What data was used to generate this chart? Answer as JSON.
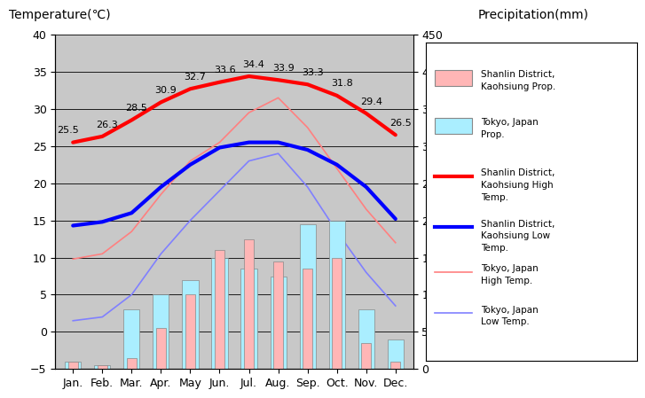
{
  "months": [
    "Jan.",
    "Feb.",
    "Mar.",
    "Apr.",
    "May",
    "Jun.",
    "Jul.",
    "Aug.",
    "Sep.",
    "Oct.",
    "Nov.",
    "Dec."
  ],
  "shanlin_high": [
    25.5,
    26.3,
    28.5,
    30.9,
    32.7,
    33.6,
    34.4,
    33.9,
    33.3,
    31.8,
    29.4,
    26.5
  ],
  "shanlin_low": [
    14.3,
    14.8,
    16.0,
    19.5,
    22.5,
    24.8,
    25.5,
    25.5,
    24.5,
    22.5,
    19.5,
    15.2
  ],
  "tokyo_high": [
    9.8,
    10.5,
    13.5,
    18.5,
    23.0,
    25.5,
    29.5,
    31.5,
    27.5,
    22.0,
    16.5,
    12.0
  ],
  "tokyo_low": [
    1.5,
    2.0,
    5.0,
    10.5,
    15.0,
    19.0,
    23.0,
    24.0,
    19.5,
    13.5,
    8.0,
    3.5
  ],
  "shanlin_precip": [
    10,
    5,
    15,
    55,
    100,
    160,
    175,
    145,
    135,
    150,
    35,
    10
  ],
  "tokyo_precip_mm": [
    10,
    5,
    80,
    100,
    120,
    150,
    135,
    125,
    195,
    200,
    80,
    40
  ],
  "shanlin_precip_color": "#FFB6B6",
  "tokyo_precip_color": "#AAEEFF",
  "shanlin_high_color": "#FF0000",
  "shanlin_low_color": "#0000FF",
  "tokyo_high_color": "#FF8080",
  "tokyo_low_color": "#8080FF",
  "plot_bg_color": "#C8C8C8",
  "temp_ylim": [
    -5,
    40
  ],
  "precip_ylim": [
    0,
    450
  ],
  "temp_yticks": [
    -5,
    0,
    5,
    10,
    15,
    20,
    25,
    30,
    35,
    40
  ],
  "precip_yticks": [
    0,
    50,
    100,
    150,
    200,
    250,
    300,
    350,
    400,
    450
  ],
  "ylabel_left": "Temperature(℃)",
  "ylabel_right": "Precipitation(mm)"
}
